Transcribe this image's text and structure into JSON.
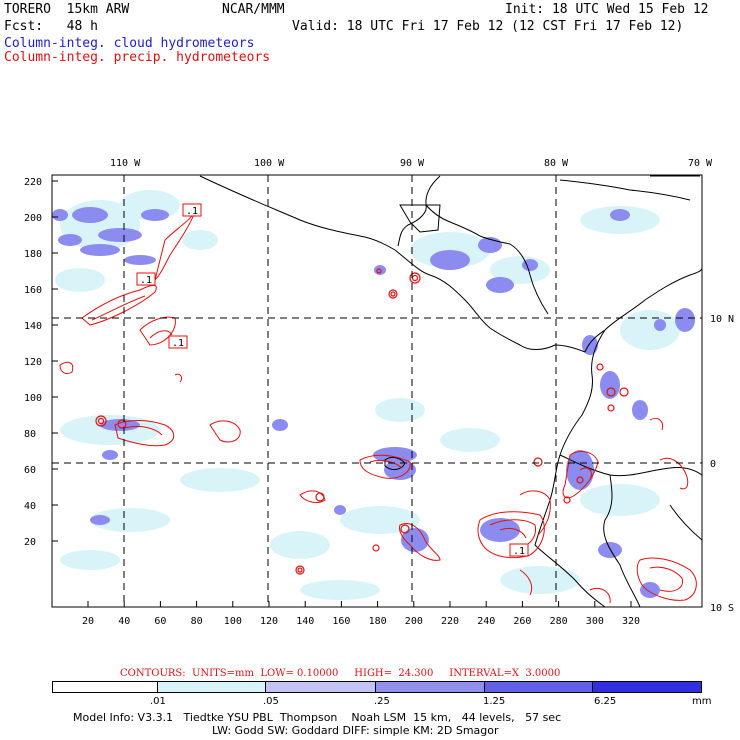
{
  "header": {
    "model": "TORERO  15km ARW",
    "org": "NCAR/MMM",
    "init": "Init: 18 UTC Wed 15 Feb 12",
    "fcst": "Fcst:   48 h",
    "valid": "Valid: 18 UTC Fri 17 Feb 12 (12 CST Fri 17 Feb 12)",
    "field_cloud": "Column-integ. cloud hydrometeors",
    "field_precip": "Column-integ. precip. hydrometeors"
  },
  "map": {
    "lon_labels": [
      "110 W",
      "100 W",
      "90 W",
      "80 W",
      "70 W"
    ],
    "lat_labels": [
      "10 N",
      "0",
      "10 S"
    ],
    "y_ticks": [
      "220",
      "200",
      "180",
      "160",
      "140",
      "120",
      "100",
      "80",
      "60",
      "40",
      "20"
    ],
    "x_ticks": [
      "20",
      "40",
      "60",
      "80",
      "100",
      "120",
      "140",
      "160",
      "180",
      "200",
      "220",
      "240",
      "260",
      "280",
      "300",
      "320"
    ],
    "contour_labels": [
      ".1",
      ".1",
      ".1",
      ".1"
    ]
  },
  "contours": {
    "text": "CONTOURS:  UNITS=mm  LOW= 0.10000     HIGH=  24.300     INTERVAL=X  3.0000"
  },
  "colorbar": {
    "labels": [
      ".01",
      ".05",
      ".25",
      "1.25",
      "6.25"
    ],
    "unit": "mm",
    "colors": [
      "#ffffff",
      "#d8f4f8",
      "#c4c4f4",
      "#9090ec",
      "#6060e8",
      "#3030e0",
      "#1010e8"
    ]
  },
  "model_info": {
    "line1": "Model Info: V3.3.1   Tiedtke YSU PBL  Thompson    Noah LSM  15 km,   44 levels,   57 sec",
    "line2": "LW: Godd SW: Goddard DIFF: simple KM: 2D Smagor"
  },
  "colors": {
    "cloud": "#2020c8",
    "precip": "#e01010",
    "cloud_fill": "#8c8cf0",
    "cloud_light": "#d8f4f8"
  }
}
